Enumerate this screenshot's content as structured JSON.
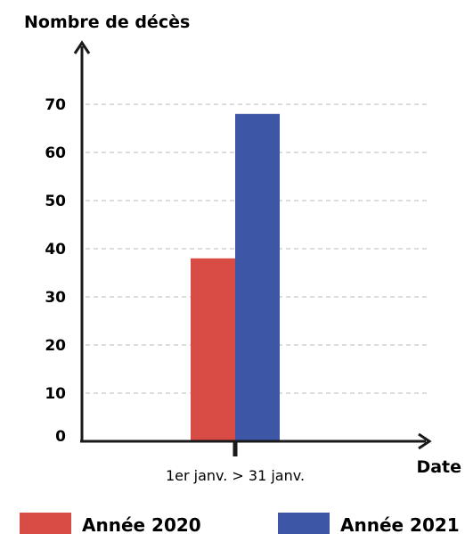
{
  "chart_data": {
    "type": "bar",
    "ylabel": "Nombre de décès",
    "xlabel": "Date",
    "categories": [
      "1er janv. > 31 janv."
    ],
    "series": [
      {
        "name": "Année 2020",
        "color": "#d94b45",
        "values": [
          38
        ]
      },
      {
        "name": "Année 2021",
        "color": "#3d56a5",
        "values": [
          68
        ]
      }
    ],
    "yticks": [
      0,
      10,
      20,
      30,
      40,
      50,
      60,
      70
    ],
    "ylim": [
      0,
      80
    ],
    "grid": true,
    "legend": "bottom"
  }
}
